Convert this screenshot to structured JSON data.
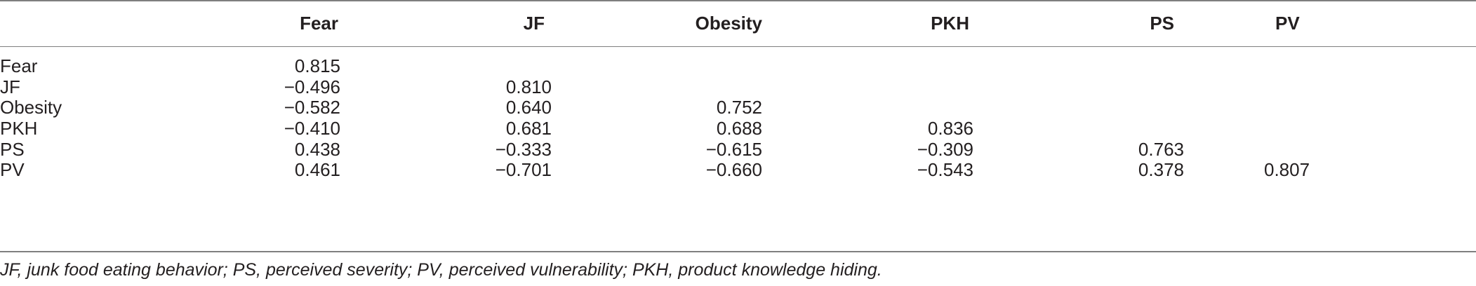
{
  "table": {
    "columns": [
      "Fear",
      "JF",
      "Obesity",
      "PKH",
      "PS",
      "PV"
    ],
    "rows": [
      {
        "label": "Fear",
        "values": [
          "0.815",
          "",
          "",
          "",
          "",
          ""
        ]
      },
      {
        "label": "JF",
        "values": [
          "−0.496",
          "0.810",
          "",
          "",
          "",
          ""
        ]
      },
      {
        "label": "Obesity",
        "values": [
          "−0.582",
          "0.640",
          "0.752",
          "",
          "",
          ""
        ]
      },
      {
        "label": "PKH",
        "values": [
          "−0.410",
          "0.681",
          "0.688",
          "0.836",
          "",
          ""
        ]
      },
      {
        "label": "PS",
        "values": [
          "0.438",
          "−0.333",
          "−0.615",
          "−0.309",
          "0.763",
          ""
        ]
      },
      {
        "label": "PV",
        "values": [
          "0.461",
          "−0.701",
          "−0.660",
          "−0.543",
          "0.378",
          "0.807"
        ]
      }
    ]
  },
  "footnote": "JF, junk food eating behavior; PS, perceived severity; PV, perceived vulnerability; PKH, product knowledge hiding."
}
